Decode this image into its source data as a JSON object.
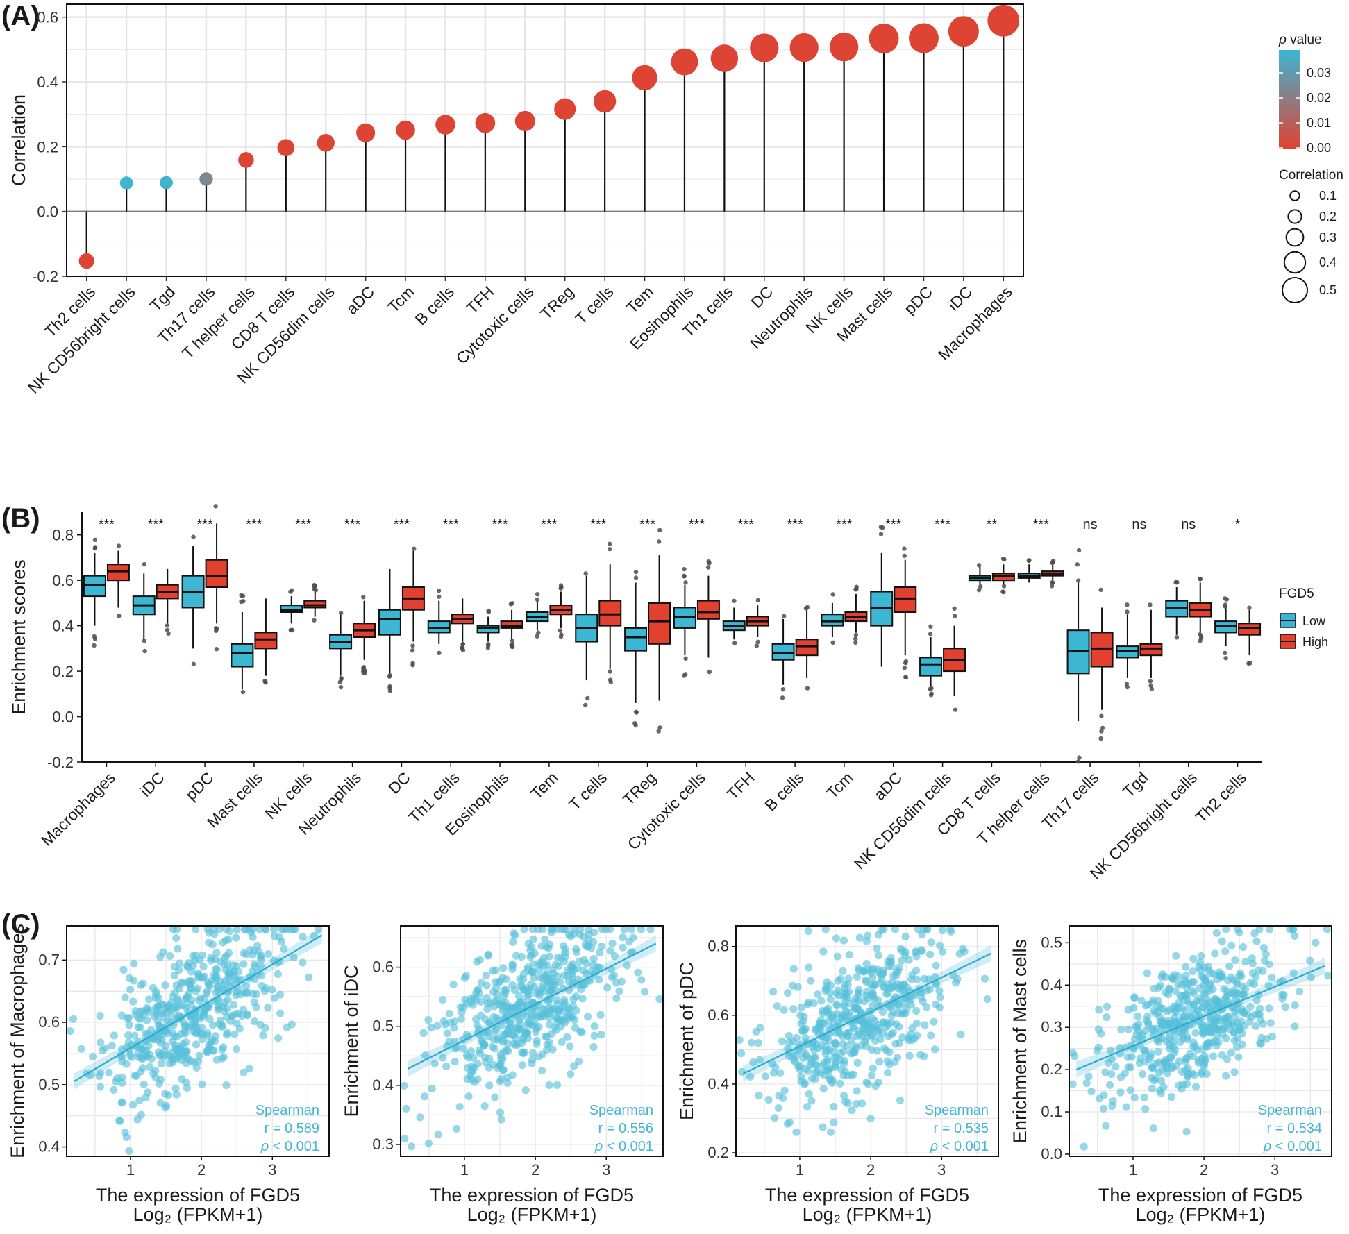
{
  "figure": {
    "panels": [
      "(A)",
      "(B)",
      "(C)"
    ]
  },
  "colors": {
    "low": "#3bb6d3",
    "high": "#e2412f",
    "scatter": "#57c0da",
    "grid": "#e6e6e6",
    "zero": "#7f7f7f"
  },
  "chart_data": [
    {
      "id": "A",
      "type": "lollipop",
      "ylabel": "Correlation",
      "ylim": [
        -0.2,
        0.64
      ],
      "yticks": [
        "-0.2",
        "0.0",
        "0.2",
        "0.4",
        "0.6"
      ],
      "categories": [
        "Th2 cells",
        "NK CD56bright cells",
        "Tgd",
        "Th17 cells",
        "T helper cells",
        "CD8 T cells",
        "NK CD56dim cells",
        "aDC",
        "Tcm",
        "B cells",
        "TFH",
        "Cytotoxic cells",
        "TReg",
        "T cells",
        "Tem",
        "Eosinophils",
        "Th1 cells",
        "DC",
        "Neutrophils",
        "NK cells",
        "Mast cells",
        "pDC",
        "iDC",
        "Macrophages"
      ],
      "values": [
        -0.153,
        0.088,
        0.089,
        0.1,
        0.159,
        0.197,
        0.212,
        0.243,
        0.251,
        0.268,
        0.273,
        0.279,
        0.316,
        0.34,
        0.413,
        0.462,
        0.473,
        0.505,
        0.506,
        0.508,
        0.534,
        0.535,
        0.556,
        0.589
      ],
      "p_values": [
        0.001,
        0.036,
        0.035,
        0.022,
        0.001,
        0.001,
        0.001,
        0.001,
        0.001,
        0.001,
        0.001,
        0.001,
        0.001,
        0.001,
        0.001,
        0.001,
        0.001,
        0.001,
        0.001,
        0.001,
        0.001,
        0.001,
        0.001,
        0.001
      ],
      "legend": {
        "p_title_symbol": "ρ",
        "p_title_text": " value",
        "p_ticks": [
          "0.03",
          "0.02",
          "0.01",
          "0.00"
        ],
        "size_title": "Correlation",
        "size_ticks": [
          "0.1",
          "0.2",
          "0.3",
          "0.4",
          "0.5"
        ]
      }
    },
    {
      "id": "B",
      "type": "boxplot",
      "ylabel": "Enrichment scores",
      "ylim": [
        -0.2,
        0.9
      ],
      "yticks": [
        "-0.2",
        "0.0",
        "0.2",
        "0.4",
        "0.6",
        "0.8"
      ],
      "categories": [
        "Macrophages",
        "iDC",
        "pDC",
        "Mast cells",
        "NK cells",
        "Neutrophils",
        "DC",
        "Th1 cells",
        "Eosinophils",
        "Tem",
        "T cells",
        "TReg",
        "Cytotoxic cells",
        "TFH",
        "B cells",
        "Tcm",
        "aDC",
        "NK CD56dim cells",
        "CD8 T cells",
        "T helper cells",
        "Th17 cells",
        "Tgd",
        "NK CD56bright cells",
        "Th2 cells"
      ],
      "significance": [
        "***",
        "***",
        "***",
        "***",
        "***",
        "***",
        "***",
        "***",
        "***",
        "***",
        "***",
        "***",
        "***",
        "***",
        "***",
        "***",
        "***",
        "***",
        "**",
        "***",
        "ns",
        "ns",
        "ns",
        "*"
      ],
      "legend": {
        "title": "FGD5",
        "labels": [
          "Low",
          "High"
        ]
      },
      "series": [
        {
          "name": "Low",
          "stats": [
            [
              0.4,
              0.53,
              0.58,
              0.62,
              0.72
            ],
            [
              0.34,
              0.45,
              0.49,
              0.53,
              0.63
            ],
            [
              0.3,
              0.48,
              0.55,
              0.62,
              0.75
            ],
            [
              0.12,
              0.22,
              0.28,
              0.32,
              0.46
            ],
            [
              0.41,
              0.46,
              0.47,
              0.49,
              0.53
            ],
            [
              0.18,
              0.3,
              0.33,
              0.36,
              0.45
            ],
            [
              0.19,
              0.36,
              0.43,
              0.47,
              0.65
            ],
            [
              0.32,
              0.37,
              0.39,
              0.42,
              0.51
            ],
            [
              0.33,
              0.37,
              0.39,
              0.4,
              0.44
            ],
            [
              0.38,
              0.42,
              0.44,
              0.46,
              0.51
            ],
            [
              0.16,
              0.33,
              0.39,
              0.45,
              0.62
            ],
            [
              0.06,
              0.29,
              0.35,
              0.39,
              0.59
            ],
            [
              0.27,
              0.39,
              0.44,
              0.48,
              0.58
            ],
            [
              0.34,
              0.38,
              0.4,
              0.42,
              0.48
            ],
            [
              0.14,
              0.25,
              0.28,
              0.32,
              0.43
            ],
            [
              0.35,
              0.4,
              0.42,
              0.45,
              0.5
            ],
            [
              0.22,
              0.4,
              0.48,
              0.55,
              0.72
            ],
            [
              0.13,
              0.18,
              0.23,
              0.26,
              0.35
            ],
            [
              0.58,
              0.6,
              0.61,
              0.62,
              0.66
            ],
            [
              0.59,
              0.61,
              0.62,
              0.63,
              0.67
            ],
            [
              -0.02,
              0.19,
              0.29,
              0.38,
              0.59
            ],
            [
              0.17,
              0.26,
              0.29,
              0.31,
              0.45
            ],
            [
              0.36,
              0.44,
              0.48,
              0.51,
              0.57
            ],
            [
              0.31,
              0.37,
              0.4,
              0.42,
              0.48
            ]
          ]
        },
        {
          "name": "High",
          "stats": [
            [
              0.48,
              0.6,
              0.64,
              0.67,
              0.73
            ],
            [
              0.41,
              0.52,
              0.55,
              0.58,
              0.65
            ],
            [
              0.41,
              0.57,
              0.62,
              0.69,
              0.85
            ],
            [
              0.18,
              0.3,
              0.34,
              0.37,
              0.52
            ],
            [
              0.44,
              0.48,
              0.49,
              0.51,
              0.55
            ],
            [
              0.25,
              0.35,
              0.38,
              0.41,
              0.51
            ],
            [
              0.33,
              0.47,
              0.52,
              0.57,
              0.73
            ],
            [
              0.33,
              0.41,
              0.43,
              0.45,
              0.52
            ],
            [
              0.34,
              0.39,
              0.4,
              0.42,
              0.47
            ],
            [
              0.39,
              0.45,
              0.47,
              0.49,
              0.55
            ],
            [
              0.21,
              0.4,
              0.45,
              0.51,
              0.67
            ],
            [
              0.07,
              0.32,
              0.42,
              0.5,
              0.71
            ],
            [
              0.26,
              0.43,
              0.46,
              0.51,
              0.62
            ],
            [
              0.35,
              0.4,
              0.42,
              0.44,
              0.49
            ],
            [
              0.17,
              0.27,
              0.31,
              0.34,
              0.47
            ],
            [
              0.37,
              0.42,
              0.44,
              0.46,
              0.54
            ],
            [
              0.27,
              0.46,
              0.52,
              0.57,
              0.69
            ],
            [
              0.09,
              0.2,
              0.25,
              0.3,
              0.4
            ],
            [
              0.58,
              0.6,
              0.62,
              0.63,
              0.67
            ],
            [
              0.6,
              0.62,
              0.63,
              0.64,
              0.67
            ],
            [
              0.03,
              0.22,
              0.3,
              0.37,
              0.48
            ],
            [
              0.17,
              0.27,
              0.3,
              0.32,
              0.47
            ],
            [
              0.37,
              0.44,
              0.47,
              0.5,
              0.59
            ],
            [
              0.27,
              0.36,
              0.39,
              0.41,
              0.47
            ]
          ]
        }
      ]
    },
    {
      "id": "C1",
      "type": "scatter",
      "xlabel": "The expression of FGD5",
      "xlabel2": "Log₂ (FPKM+1)",
      "ylabel": "Enrichment of Macrophages",
      "xlim": [
        0.1,
        3.8
      ],
      "ylim": [
        0.385,
        0.755
      ],
      "xticks": [
        1,
        2,
        3
      ],
      "yticks": [
        0.4,
        0.5,
        0.6,
        0.7
      ],
      "fit": [
        [
          0.2,
          0.505
        ],
        [
          3.7,
          0.74
        ]
      ],
      "center": [
        1.85,
        0.617
      ],
      "spread": [
        0.62,
        0.058
      ],
      "r": 0.589,
      "seed": 11,
      "anno_method": "Spearman",
      "anno_r": "r = 0.589",
      "anno_p_sym": "ρ",
      "anno_p_text": " < 0.001"
    },
    {
      "id": "C2",
      "type": "scatter",
      "xlabel": "The expression of FGD5",
      "xlabel2": "Log₂ (FPKM+1)",
      "ylabel": "Enrichment of iDC",
      "xlim": [
        0.1,
        3.8
      ],
      "ylim": [
        0.28,
        0.67
      ],
      "xticks": [
        1,
        2,
        3
      ],
      "yticks": [
        0.3,
        0.4,
        0.5,
        0.6
      ],
      "fit": [
        [
          0.2,
          0.428
        ],
        [
          3.7,
          0.64
        ]
      ],
      "center": [
        1.85,
        0.528
      ],
      "spread": [
        0.62,
        0.06
      ],
      "r": 0.556,
      "seed": 23,
      "anno_method": "Spearman",
      "anno_r": "r = 0.556",
      "anno_p_sym": "ρ",
      "anno_p_text": " < 0.001"
    },
    {
      "id": "C3",
      "type": "scatter",
      "xlabel": "The expression of FGD5",
      "xlabel2": "Log₂ (FPKM+1)",
      "ylabel": "Enrichment of pDC",
      "xlim": [
        0.1,
        3.8
      ],
      "ylim": [
        0.19,
        0.86
      ],
      "xticks": [
        1,
        2,
        3
      ],
      "yticks": [
        0.2,
        0.4,
        0.6,
        0.8
      ],
      "fit": [
        [
          0.2,
          0.43
        ],
        [
          3.7,
          0.78
        ]
      ],
      "center": [
        1.85,
        0.592
      ],
      "spread": [
        0.62,
        0.105
      ],
      "r": 0.535,
      "seed": 37,
      "anno_method": "Spearman",
      "anno_r": "r = 0.535",
      "anno_p_sym": "ρ",
      "anno_p_text": " < 0.001"
    },
    {
      "id": "C4",
      "type": "scatter",
      "xlabel": "The expression of FGD5",
      "xlabel2": "Log₂ (FPKM+1)",
      "ylabel": "Enrichment of Mast cells",
      "xlim": [
        0.1,
        3.8
      ],
      "ylim": [
        -0.005,
        0.54
      ],
      "xticks": [
        1,
        2,
        3
      ],
      "yticks": [
        0.0,
        0.1,
        0.2,
        0.3,
        0.4,
        0.5
      ],
      "fit": [
        [
          0.2,
          0.2
        ],
        [
          3.7,
          0.445
        ]
      ],
      "center": [
        1.85,
        0.316
      ],
      "spread": [
        0.62,
        0.075
      ],
      "r": 0.534,
      "seed": 53,
      "anno_method": "Spearman",
      "anno_r": "r = 0.534",
      "anno_p_sym": "ρ",
      "anno_p_text": " < 0.001"
    }
  ]
}
